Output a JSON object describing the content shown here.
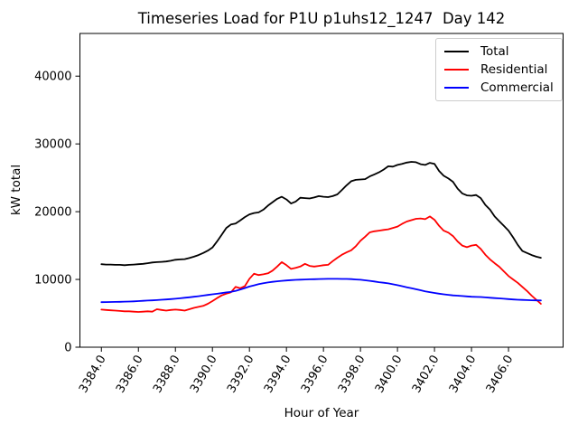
{
  "chart_data": {
    "type": "line",
    "title": "Timeseries Load for P1U p1uhs12_1247  Day 142",
    "xlabel": "Hour of Year",
    "ylabel": "kW total",
    "xlim": [
      3382.84,
      3408.95
    ],
    "ylim": [
      0,
      46300
    ],
    "grid": false,
    "legend_position": "upper right",
    "x_ticks": [
      3384,
      3386,
      3388,
      3390,
      3392,
      3394,
      3396,
      3398,
      3400,
      3402,
      3404,
      3406
    ],
    "x_tick_labels": [
      "3384.0",
      "3386.0",
      "3388.0",
      "3390.0",
      "3392.0",
      "3394.0",
      "3396.0",
      "3398.0",
      "3400.0",
      "3402.0",
      "3404.0",
      "3406.0"
    ],
    "y_ticks": [
      0,
      10000,
      20000,
      30000,
      40000
    ],
    "y_tick_labels": [
      "0",
      "10000",
      "20000",
      "30000",
      "40000"
    ],
    "x": [
      3384.0,
      3384.25,
      3384.5,
      3384.75,
      3385.0,
      3385.25,
      3385.5,
      3385.75,
      3386.0,
      3386.25,
      3386.5,
      3386.75,
      3387.0,
      3387.25,
      3387.5,
      3387.75,
      3388.0,
      3388.25,
      3388.5,
      3388.75,
      3389.0,
      3389.25,
      3389.5,
      3389.75,
      3390.0,
      3390.25,
      3390.5,
      3390.75,
      3391.0,
      3391.25,
      3391.5,
      3391.75,
      3392.0,
      3392.25,
      3392.5,
      3392.75,
      3393.0,
      3393.25,
      3393.5,
      3393.75,
      3394.0,
      3394.25,
      3394.5,
      3394.75,
      3395.0,
      3395.25,
      3395.5,
      3395.75,
      3396.0,
      3396.25,
      3396.5,
      3396.75,
      3397.0,
      3397.25,
      3397.5,
      3397.75,
      3398.0,
      3398.25,
      3398.5,
      3398.75,
      3399.0,
      3399.25,
      3399.5,
      3399.75,
      3400.0,
      3400.25,
      3400.5,
      3400.75,
      3401.0,
      3401.25,
      3401.5,
      3401.75,
      3402.0,
      3402.25,
      3402.5,
      3402.75,
      3403.0,
      3403.25,
      3403.5,
      3403.75,
      3404.0,
      3404.25,
      3404.5,
      3404.75,
      3405.0,
      3405.25,
      3405.5,
      3405.75,
      3406.0,
      3406.25,
      3406.5,
      3406.75,
      3407.0,
      3407.25,
      3407.5,
      3407.75
    ],
    "series": [
      {
        "name": "Total",
        "color": "#000000",
        "values": [
          12250,
          12200,
          12200,
          12150,
          12150,
          12100,
          12150,
          12200,
          12250,
          12300,
          12400,
          12500,
          12550,
          12600,
          12650,
          12750,
          12900,
          12950,
          13000,
          13150,
          13350,
          13600,
          13900,
          14250,
          14700,
          15600,
          16600,
          17600,
          18100,
          18250,
          18700,
          19200,
          19600,
          19800,
          19900,
          20300,
          20900,
          21400,
          21900,
          22200,
          21800,
          21200,
          21500,
          22050,
          22000,
          21950,
          22100,
          22300,
          22200,
          22150,
          22300,
          22550,
          23200,
          23900,
          24500,
          24700,
          24750,
          24800,
          25200,
          25500,
          25800,
          26200,
          26700,
          26650,
          26900,
          27050,
          27250,
          27350,
          27300,
          27000,
          26900,
          27200,
          27050,
          26000,
          25300,
          24900,
          24400,
          23400,
          22700,
          22400,
          22350,
          22450,
          22000,
          21000,
          20300,
          19300,
          18600,
          17900,
          17200,
          16200,
          15100,
          14200,
          13900,
          13600,
          13350,
          13200
        ]
      },
      {
        "name": "Residential",
        "color": "#ff0000",
        "values": [
          5550,
          5500,
          5450,
          5400,
          5350,
          5300,
          5300,
          5250,
          5200,
          5250,
          5300,
          5250,
          5600,
          5500,
          5400,
          5500,
          5550,
          5500,
          5400,
          5600,
          5800,
          5950,
          6100,
          6400,
          6800,
          7250,
          7650,
          7900,
          8100,
          8900,
          8700,
          9000,
          10100,
          10850,
          10650,
          10750,
          10900,
          11300,
          11900,
          12550,
          12100,
          11550,
          11700,
          11900,
          12300,
          12000,
          11900,
          12000,
          12100,
          12150,
          12700,
          13200,
          13650,
          14000,
          14300,
          14900,
          15700,
          16300,
          16950,
          17100,
          17200,
          17300,
          17400,
          17600,
          17800,
          18200,
          18550,
          18750,
          18950,
          19000,
          18900,
          19300,
          18800,
          17900,
          17200,
          16900,
          16400,
          15600,
          15000,
          14760,
          15000,
          15100,
          14500,
          13650,
          12950,
          12400,
          11870,
          11200,
          10500,
          10000,
          9500,
          8900,
          8300,
          7600,
          7000,
          6400
        ]
      },
      {
        "name": "Commercial",
        "color": "#0000ff",
        "values": [
          6650,
          6660,
          6670,
          6690,
          6700,
          6720,
          6740,
          6770,
          6800,
          6840,
          6880,
          6910,
          6950,
          7000,
          7050,
          7100,
          7150,
          7220,
          7300,
          7370,
          7450,
          7530,
          7620,
          7710,
          7800,
          7890,
          7980,
          8080,
          8170,
          8300,
          8500,
          8730,
          8950,
          9130,
          9300,
          9430,
          9550,
          9650,
          9730,
          9800,
          9850,
          9900,
          9940,
          9970,
          10000,
          10020,
          10040,
          10060,
          10080,
          10090,
          10090,
          10090,
          10080,
          10070,
          10050,
          10000,
          9950,
          9880,
          9800,
          9700,
          9600,
          9510,
          9420,
          9290,
          9150,
          9000,
          8850,
          8700,
          8550,
          8400,
          8250,
          8120,
          8000,
          7900,
          7800,
          7720,
          7650,
          7600,
          7550,
          7500,
          7450,
          7420,
          7400,
          7350,
          7300,
          7250,
          7200,
          7150,
          7100,
          7050,
          7000,
          6980,
          6950,
          6930,
          6910,
          6900
        ]
      }
    ]
  }
}
